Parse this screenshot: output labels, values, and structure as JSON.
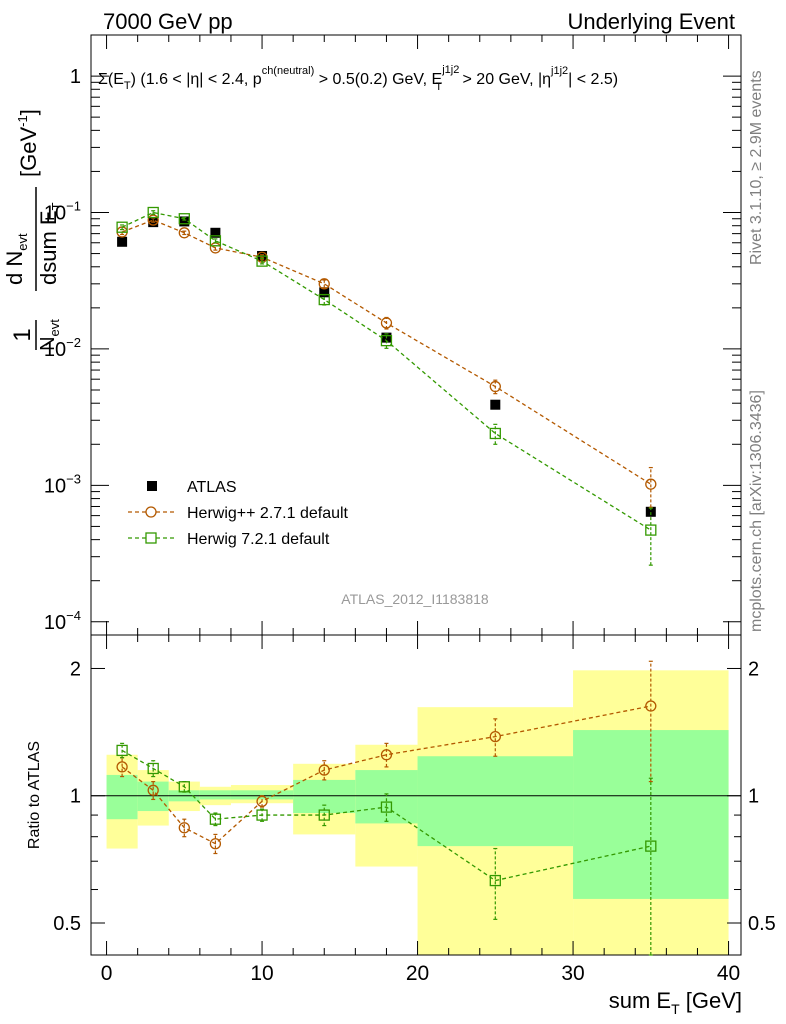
{
  "header": {
    "left": "7000 GeV pp",
    "right": "Underlying Event"
  },
  "side": {
    "rivet": "Rivet 3.1.10, ≥ 2.9M events",
    "mcplots": "mcplots.cern.ch [arXiv:1306.3436]"
  },
  "analysis_id": "ATLAS_2012_I1183818",
  "colors": {
    "data": "#000000",
    "herwigpp": "#b35900",
    "herwig7": "#339900",
    "band_inner": "#99ff99",
    "band_outer": "#ffff99"
  },
  "chart_data": [
    {
      "type": "scatter",
      "panel": "main",
      "title": "Σ(E_T) (1.6 < |η| < 2.4, p^{ch(neutral)} > 0.5(0.2) GeV, E_T^{j1j2} > 20 GeV, |η^{j1j2}| < 2.5)",
      "ylabel": "1/N_evt dN_evt/dsum E_T [GeV^-1]",
      "yscale": "log",
      "xlim": [
        -1,
        40.8
      ],
      "ylim": [
        8e-05,
        2.0
      ],
      "x_ticks": [
        "0",
        "10",
        "20",
        "30",
        "40"
      ],
      "y_ticks": [
        "10^-4",
        "10^-3",
        "10^-2",
        "10^-1",
        "1"
      ],
      "legend_position": "lower-left",
      "series": [
        {
          "name": "ATLAS",
          "style": "marker",
          "x": [
            1,
            3,
            5,
            7,
            10,
            14,
            18,
            25,
            35
          ],
          "y": [
            0.061,
            0.085,
            0.086,
            0.071,
            0.048,
            0.026,
            0.0121,
            0.0039,
            0.00064
          ]
        },
        {
          "name": "Herwig++ 2.7.1 default",
          "style": "circle-dashed",
          "x": [
            1,
            3,
            5,
            7,
            10,
            14,
            18,
            25,
            35
          ],
          "y": [
            0.072,
            0.088,
            0.071,
            0.055,
            0.047,
            0.03,
            0.0155,
            0.0053,
            0.00102
          ],
          "err": [
            0.003,
            0.003,
            0.002,
            0.002,
            0.002,
            0.002,
            0.0015,
            0.0006,
            0.00033
          ]
        },
        {
          "name": "Herwig 7.2.1 default",
          "style": "square-dashed",
          "x": [
            1,
            3,
            5,
            7,
            10,
            14,
            18,
            25,
            35
          ],
          "y": [
            0.078,
            0.1,
            0.09,
            0.062,
            0.044,
            0.023,
            0.0115,
            0.0024,
            0.00047
          ],
          "err": [
            0.003,
            0.003,
            0.002,
            0.002,
            0.002,
            0.002,
            0.0014,
            0.0004,
            0.00021
          ]
        }
      ]
    },
    {
      "type": "scatter",
      "panel": "ratio",
      "ylabel": "Ratio to ATLAS",
      "xlabel": "sum E_T [GeV]",
      "yscale": "log",
      "xlim": [
        -1,
        40.8
      ],
      "ylim": [
        0.42,
        2.4
      ],
      "x_ticks": [
        "0",
        "10",
        "20",
        "30",
        "40"
      ],
      "y_ticks": [
        "0.5",
        "1",
        "2"
      ],
      "reference_line": 1,
      "uncertainty_bands": {
        "edges": [
          0,
          2,
          4,
          6,
          8,
          12,
          16,
          20,
          30,
          40
        ],
        "inner_low": [
          0.88,
          0.92,
          0.97,
          0.98,
          0.98,
          0.91,
          0.86,
          0.76,
          0.57
        ],
        "inner_high": [
          1.12,
          1.08,
          1.03,
          1.03,
          1.03,
          1.09,
          1.15,
          1.24,
          1.43
        ],
        "outer_low": [
          0.75,
          0.85,
          0.92,
          0.95,
          0.96,
          0.81,
          0.68,
          0.38,
          0.38
        ],
        "outer_high": [
          1.25,
          1.15,
          1.08,
          1.05,
          1.06,
          1.19,
          1.32,
          1.62,
          1.98
        ]
      },
      "series": [
        {
          "name": "Herwig++ 2.7.1 default",
          "style": "circle-dashed",
          "x": [
            1,
            3,
            5,
            7,
            10,
            14,
            18,
            25,
            35
          ],
          "y": [
            1.17,
            1.03,
            0.84,
            0.77,
            0.97,
            1.15,
            1.25,
            1.38,
            1.63
          ],
          "err_low": [
            0.06,
            0.05,
            0.04,
            0.04,
            0.03,
            0.06,
            0.08,
            0.14,
            0.55
          ],
          "err_high": [
            0.06,
            0.05,
            0.04,
            0.04,
            0.03,
            0.06,
            0.08,
            0.14,
            0.45
          ]
        },
        {
          "name": "Herwig 7.2.1 default",
          "style": "square-dashed",
          "x": [
            1,
            3,
            5,
            7,
            10,
            14,
            18,
            25,
            35
          ],
          "y": [
            1.28,
            1.16,
            1.05,
            0.88,
            0.9,
            0.9,
            0.94,
            0.63,
            0.76
          ],
          "err_low": [
            0.05,
            0.05,
            0.03,
            0.03,
            0.03,
            0.05,
            0.07,
            0.12,
            0.34
          ],
          "err_high": [
            0.05,
            0.05,
            0.03,
            0.03,
            0.03,
            0.05,
            0.07,
            0.12,
            0.34
          ]
        }
      ]
    }
  ]
}
